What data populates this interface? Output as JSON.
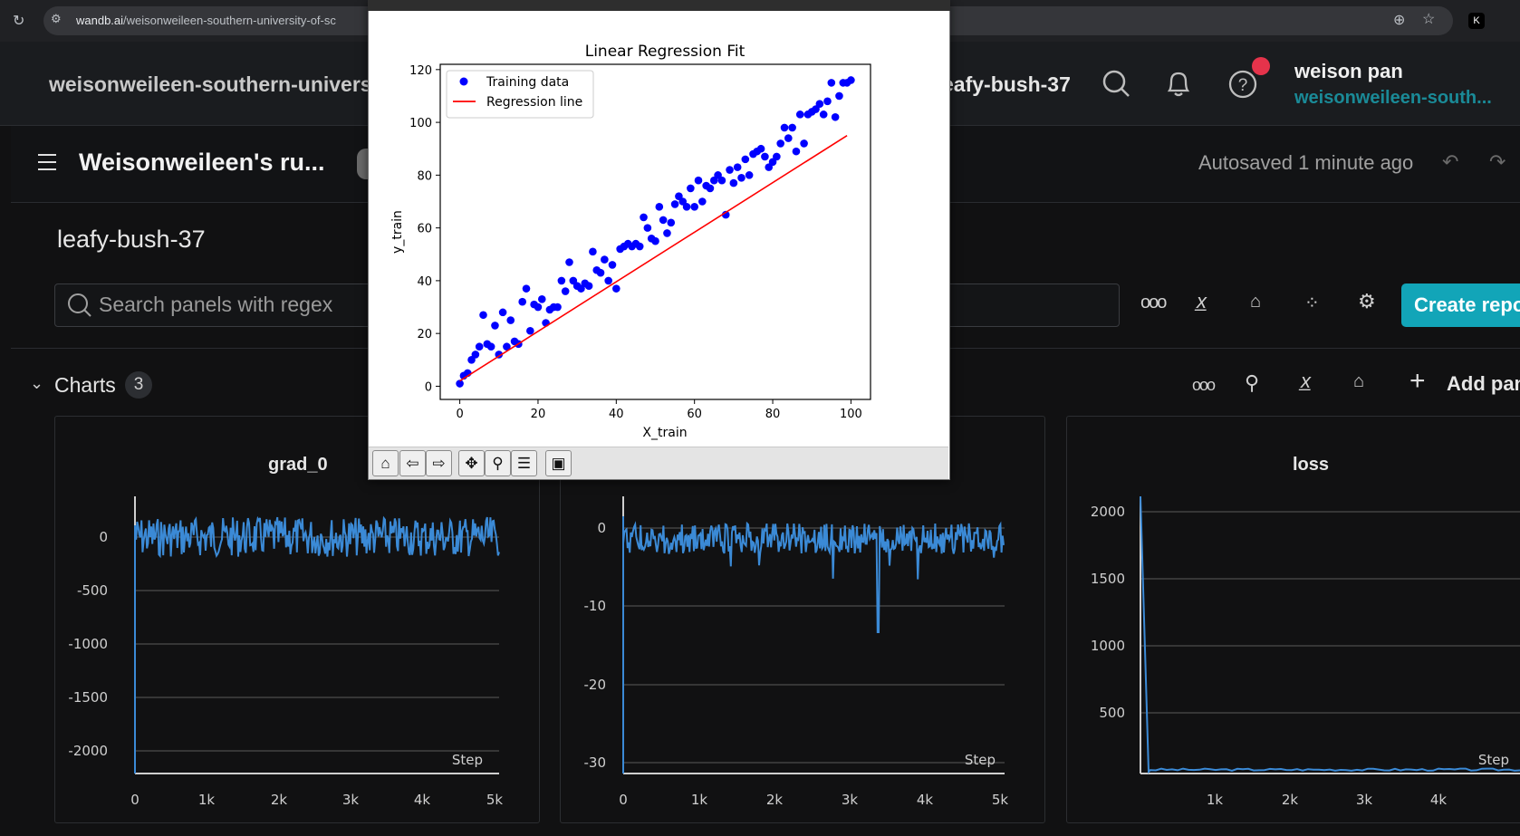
{
  "browser": {
    "url_host": "wandb.ai",
    "url_path": "/weisonweileen-southern-university-of-sc"
  },
  "header": {
    "entity": "weisonweileen-southern-universit",
    "run_crumb": "eafy-bush-37",
    "user_name": "weison pan",
    "user_entity": "weisonweileen-south..."
  },
  "workspace": {
    "title": "Weisonweileen's ru...",
    "autosave": "Autosaved 1 minute ago",
    "run_name": "leafy-bush-37",
    "search_placeholder": "Search panels with regex",
    "create_report": "Create repo",
    "section_label": "Charts",
    "section_count": "3",
    "add_panel": "Add pan"
  },
  "panels": [
    {
      "title": "grad_0",
      "y_ticks": [
        "0",
        "-500",
        "-1000",
        "-1500",
        "-2000"
      ],
      "x_ticks": [
        "0",
        "1k",
        "2k",
        "3k",
        "4k",
        "5k"
      ],
      "x_label": "Step"
    },
    {
      "title": "",
      "y_ticks": [
        "0",
        "-10",
        "-20",
        "-30"
      ],
      "x_ticks": [
        "0",
        "1k",
        "2k",
        "3k",
        "4k",
        "5k"
      ],
      "x_label": "Step"
    },
    {
      "title": "loss",
      "y_ticks": [
        "2000",
        "1500",
        "1000",
        "500"
      ],
      "x_ticks": [
        "1k",
        "2k",
        "3k",
        "4k"
      ],
      "x_label": "Step"
    }
  ],
  "chart_data": {
    "type": "scatter",
    "title": "Linear Regression Fit",
    "xlabel": "X_train",
    "ylabel": "y_train",
    "xlim": [
      -5,
      105
    ],
    "ylim": [
      -5,
      122
    ],
    "x_ticks": [
      "0",
      "20",
      "40",
      "60",
      "80",
      "100"
    ],
    "y_ticks": [
      "0",
      "20",
      "40",
      "60",
      "80",
      "100",
      "120"
    ],
    "legend_position": "top-left",
    "series": [
      {
        "name": "Training data",
        "color": "#0000ff",
        "points": [
          [
            0,
            1
          ],
          [
            1,
            4
          ],
          [
            2,
            5
          ],
          [
            3,
            10
          ],
          [
            4,
            12
          ],
          [
            5,
            15
          ],
          [
            6,
            27
          ],
          [
            7,
            16
          ],
          [
            8,
            15
          ],
          [
            9,
            23
          ],
          [
            10,
            12
          ],
          [
            11,
            28
          ],
          [
            12,
            15
          ],
          [
            13,
            25
          ],
          [
            14,
            17
          ],
          [
            15,
            16
          ],
          [
            16,
            32
          ],
          [
            17,
            37
          ],
          [
            18,
            21
          ],
          [
            19,
            31
          ],
          [
            20,
            30
          ],
          [
            21,
            33
          ],
          [
            22,
            24
          ],
          [
            23,
            29
          ],
          [
            24,
            30
          ],
          [
            25,
            30
          ],
          [
            26,
            40
          ],
          [
            27,
            36
          ],
          [
            28,
            47
          ],
          [
            29,
            40
          ],
          [
            30,
            38
          ],
          [
            31,
            37
          ],
          [
            32,
            39
          ],
          [
            33,
            38
          ],
          [
            34,
            51
          ],
          [
            35,
            44
          ],
          [
            36,
            43
          ],
          [
            37,
            48
          ],
          [
            38,
            40
          ],
          [
            39,
            46
          ],
          [
            40,
            37
          ],
          [
            41,
            52
          ],
          [
            42,
            53
          ],
          [
            43,
            54
          ],
          [
            44,
            53
          ],
          [
            45,
            54
          ],
          [
            46,
            53
          ],
          [
            47,
            64
          ],
          [
            48,
            60
          ],
          [
            49,
            56
          ],
          [
            50,
            55
          ],
          [
            51,
            68
          ],
          [
            52,
            63
          ],
          [
            53,
            58
          ],
          [
            54,
            62
          ],
          [
            55,
            69
          ],
          [
            56,
            72
          ],
          [
            57,
            70
          ],
          [
            58,
            68
          ],
          [
            59,
            75
          ],
          [
            60,
            68
          ],
          [
            61,
            78
          ],
          [
            62,
            70
          ],
          [
            63,
            76
          ],
          [
            64,
            75
          ],
          [
            65,
            78
          ],
          [
            66,
            80
          ],
          [
            67,
            78
          ],
          [
            68,
            65
          ],
          [
            69,
            82
          ],
          [
            70,
            77
          ],
          [
            71,
            83
          ],
          [
            72,
            79
          ],
          [
            73,
            86
          ],
          [
            74,
            80
          ],
          [
            75,
            88
          ],
          [
            76,
            89
          ],
          [
            77,
            90
          ],
          [
            78,
            87
          ],
          [
            79,
            83
          ],
          [
            80,
            85
          ],
          [
            81,
            87
          ],
          [
            82,
            92
          ],
          [
            83,
            98
          ],
          [
            84,
            94
          ],
          [
            85,
            98
          ],
          [
            86,
            89
          ],
          [
            87,
            103
          ],
          [
            88,
            92
          ],
          [
            89,
            103
          ],
          [
            90,
            104
          ],
          [
            91,
            105
          ],
          [
            92,
            107
          ],
          [
            93,
            103
          ],
          [
            94,
            108
          ],
          [
            95,
            115
          ],
          [
            96,
            102
          ],
          [
            97,
            110
          ],
          [
            98,
            115
          ],
          [
            99,
            115
          ],
          [
            100,
            116
          ]
        ]
      },
      {
        "name": "Regression line",
        "color": "#ff0000",
        "line": [
          [
            0,
            2
          ],
          [
            99,
            95
          ]
        ]
      }
    ]
  }
}
